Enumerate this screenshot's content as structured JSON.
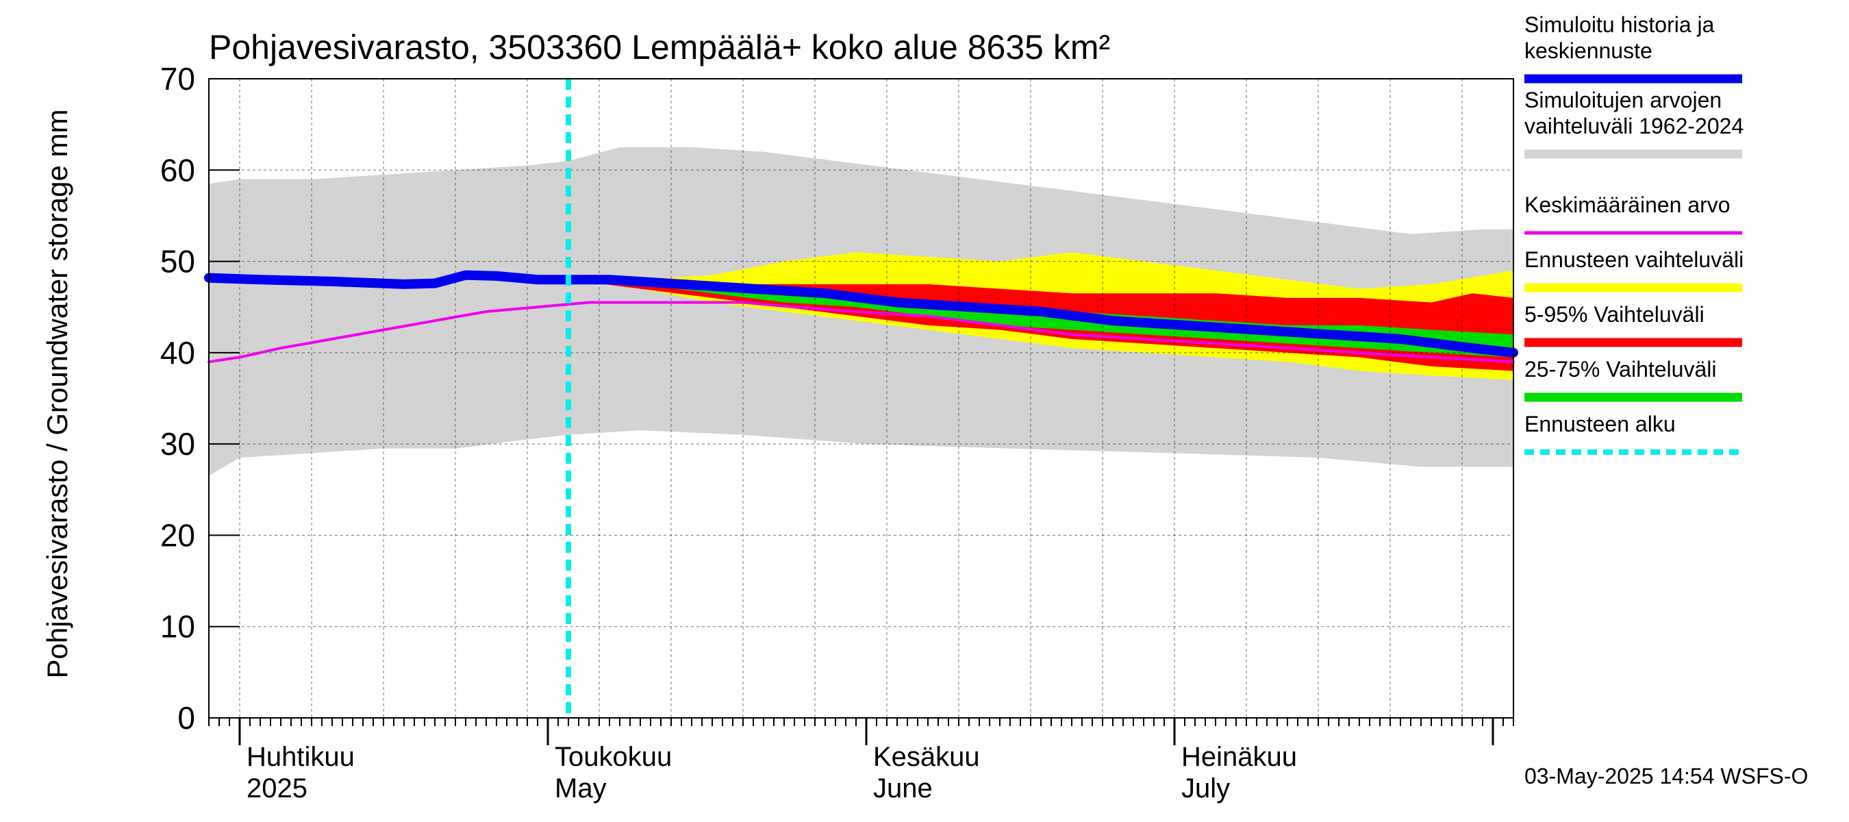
{
  "chart_data": {
    "type": "area",
    "title": "Pohjavesivarasto, 3503360 Lempäälä+ koko alue 8635 km²",
    "ylabel": "Pohjavesivarasto / Groundwater storage   mm",
    "ylim": [
      0,
      70
    ],
    "yticks": [
      "0",
      "10",
      "20",
      "30",
      "40",
      "50",
      "60",
      "70"
    ],
    "xlim": [
      "2025-03-29",
      "2025-08-03"
    ],
    "forecast_start": "2025-05-03",
    "month_labels": [
      {
        "date": "2025-04-01",
        "fi": "Huhtikuu",
        "en": "2025"
      },
      {
        "date": "2025-05-01",
        "fi": "Toukokuu",
        "en": "May"
      },
      {
        "date": "2025-06-01",
        "fi": "Kesäkuu",
        "en": "June"
      },
      {
        "date": "2025-07-01",
        "fi": "Heinäkuu",
        "en": "July"
      }
    ],
    "timestamp": "03-May-2025 14:54 WSFS-O",
    "legend": [
      {
        "key": "history",
        "label": "Simuloitu historia ja keskiennuste",
        "lines": [
          "Simuloitu historia ja",
          "keskiennuste"
        ],
        "color": "#0000ee",
        "style": "line"
      },
      {
        "key": "range",
        "label": "Simuloitujen arvojen vaihteluväli 1962-2024",
        "lines": [
          "Simuloitujen arvojen",
          "vaihteluväli 1962-2024"
        ],
        "color": "#d3d3d3",
        "style": "line"
      },
      {
        "key": "mean",
        "label": "Keskimääräinen arvo",
        "lines": [
          "Keskimääräinen arvo"
        ],
        "color": "#ee00ee",
        "style": "thin"
      },
      {
        "key": "fc_range",
        "label": "Ennusteen vaihteluväli",
        "lines": [
          "Ennusteen vaihteluväli"
        ],
        "color": "#ffff00",
        "style": "line"
      },
      {
        "key": "p5_95",
        "label": "5-95% Vaihteluväli",
        "lines": [
          "5-95% Vaihteluväli"
        ],
        "color": "#ff0000",
        "style": "line"
      },
      {
        "key": "p25_75",
        "label": "25-75% Vaihteluväli",
        "lines": [
          "25-75% Vaihteluväli"
        ],
        "color": "#00dd00",
        "style": "line"
      },
      {
        "key": "fc_start",
        "label": "Ennusteen alku",
        "lines": [
          "Ennusteen alku"
        ],
        "color": "#00eeee",
        "style": "dashed"
      }
    ],
    "series": {
      "range_upper": [
        [
          "2025-03-29",
          58.5
        ],
        [
          "2025-04-01",
          59
        ],
        [
          "2025-04-08",
          59
        ],
        [
          "2025-04-15",
          59.5
        ],
        [
          "2025-04-22",
          60
        ],
        [
          "2025-04-29",
          60.5
        ],
        [
          "2025-05-03",
          61
        ],
        [
          "2025-05-08",
          62.5
        ],
        [
          "2025-05-15",
          62.5
        ],
        [
          "2025-05-22",
          62
        ],
        [
          "2025-05-29",
          61
        ],
        [
          "2025-06-05",
          60
        ],
        [
          "2025-06-12",
          59
        ],
        [
          "2025-06-19",
          58
        ],
        [
          "2025-06-26",
          57
        ],
        [
          "2025-07-03",
          56
        ],
        [
          "2025-07-10",
          55
        ],
        [
          "2025-07-17",
          54
        ],
        [
          "2025-07-24",
          53
        ],
        [
          "2025-07-31",
          53.5
        ],
        [
          "2025-08-03",
          53.5
        ]
      ],
      "range_lower": [
        [
          "2025-03-29",
          26.5
        ],
        [
          "2025-04-01",
          28.5
        ],
        [
          "2025-04-08",
          29
        ],
        [
          "2025-04-15",
          29.5
        ],
        [
          "2025-04-22",
          29.5
        ],
        [
          "2025-04-29",
          30.5
        ],
        [
          "2025-05-03",
          31
        ],
        [
          "2025-05-10",
          31.5
        ],
        [
          "2025-05-20",
          31
        ],
        [
          "2025-06-01",
          30
        ],
        [
          "2025-06-15",
          29.5
        ],
        [
          "2025-07-01",
          29
        ],
        [
          "2025-07-15",
          28.5
        ],
        [
          "2025-07-25",
          27.5
        ],
        [
          "2025-08-03",
          27.5
        ]
      ],
      "fc_upper": [
        [
          "2025-05-03",
          48
        ],
        [
          "2025-05-10",
          48
        ],
        [
          "2025-05-17",
          48.5
        ],
        [
          "2025-05-24",
          50
        ],
        [
          "2025-05-31",
          51
        ],
        [
          "2025-06-07",
          50.5
        ],
        [
          "2025-06-14",
          50
        ],
        [
          "2025-06-21",
          51
        ],
        [
          "2025-06-28",
          50
        ],
        [
          "2025-07-05",
          49
        ],
        [
          "2025-07-12",
          48
        ],
        [
          "2025-07-19",
          47
        ],
        [
          "2025-07-26",
          47.5
        ],
        [
          "2025-08-03",
          49
        ]
      ],
      "fc_lower": [
        [
          "2025-05-03",
          48
        ],
        [
          "2025-05-10",
          47
        ],
        [
          "2025-05-17",
          45.5
        ],
        [
          "2025-05-24",
          44.5
        ],
        [
          "2025-05-31",
          43.5
        ],
        [
          "2025-06-07",
          42.5
        ],
        [
          "2025-06-14",
          41.5
        ],
        [
          "2025-06-21",
          40.5
        ],
        [
          "2025-06-28",
          40
        ],
        [
          "2025-07-05",
          39.5
        ],
        [
          "2025-07-12",
          39
        ],
        [
          "2025-07-19",
          38
        ],
        [
          "2025-07-26",
          37.5
        ],
        [
          "2025-08-03",
          37
        ]
      ],
      "p95": [
        [
          "2025-05-03",
          48
        ],
        [
          "2025-05-10",
          48
        ],
        [
          "2025-05-17",
          47.5
        ],
        [
          "2025-05-24",
          47.5
        ],
        [
          "2025-05-31",
          47.5
        ],
        [
          "2025-06-07",
          47.5
        ],
        [
          "2025-06-14",
          47
        ],
        [
          "2025-06-21",
          46.5
        ],
        [
          "2025-06-28",
          46.5
        ],
        [
          "2025-07-05",
          46.5
        ],
        [
          "2025-07-12",
          46
        ],
        [
          "2025-07-19",
          46
        ],
        [
          "2025-07-26",
          45.5
        ],
        [
          "2025-07-30",
          46.5
        ],
        [
          "2025-08-03",
          46
        ]
      ],
      "p5": [
        [
          "2025-05-03",
          48
        ],
        [
          "2025-05-10",
          47
        ],
        [
          "2025-05-17",
          46
        ],
        [
          "2025-05-24",
          45
        ],
        [
          "2025-05-31",
          44
        ],
        [
          "2025-06-07",
          43
        ],
        [
          "2025-06-14",
          42.5
        ],
        [
          "2025-06-21",
          41.5
        ],
        [
          "2025-06-28",
          41
        ],
        [
          "2025-07-05",
          40.5
        ],
        [
          "2025-07-12",
          40
        ],
        [
          "2025-07-19",
          39.5
        ],
        [
          "2025-07-26",
          38.5
        ],
        [
          "2025-08-03",
          38
        ]
      ],
      "p75": [
        [
          "2025-05-03",
          48
        ],
        [
          "2025-05-10",
          47.5
        ],
        [
          "2025-05-17",
          47
        ],
        [
          "2025-05-24",
          46.5
        ],
        [
          "2025-05-31",
          46
        ],
        [
          "2025-06-07",
          45.5
        ],
        [
          "2025-06-14",
          45
        ],
        [
          "2025-06-21",
          44.5
        ],
        [
          "2025-06-28",
          44
        ],
        [
          "2025-07-05",
          43.5
        ],
        [
          "2025-07-12",
          43
        ],
        [
          "2025-07-19",
          43
        ],
        [
          "2025-07-26",
          42.5
        ],
        [
          "2025-08-03",
          42
        ]
      ],
      "p25": [
        [
          "2025-05-03",
          48
        ],
        [
          "2025-05-10",
          47.5
        ],
        [
          "2025-05-17",
          46.5
        ],
        [
          "2025-05-24",
          45.5
        ],
        [
          "2025-05-31",
          45
        ],
        [
          "2025-06-07",
          44
        ],
        [
          "2025-06-14",
          43
        ],
        [
          "2025-06-21",
          42.5
        ],
        [
          "2025-06-28",
          42
        ],
        [
          "2025-07-05",
          41.5
        ],
        [
          "2025-07-12",
          41
        ],
        [
          "2025-07-19",
          40.5
        ],
        [
          "2025-07-26",
          40
        ],
        [
          "2025-08-03",
          39.5
        ]
      ],
      "history": [
        [
          "2025-03-29",
          48.2
        ],
        [
          "2025-04-03",
          48
        ],
        [
          "2025-04-10",
          47.8
        ],
        [
          "2025-04-17",
          47.5
        ],
        [
          "2025-04-20",
          47.6
        ],
        [
          "2025-04-23",
          48.5
        ],
        [
          "2025-04-26",
          48.4
        ],
        [
          "2025-04-30",
          48
        ],
        [
          "2025-05-03",
          48
        ],
        [
          "2025-05-07",
          48
        ],
        [
          "2025-05-14",
          47.5
        ],
        [
          "2025-05-21",
          47
        ],
        [
          "2025-05-28",
          46.5
        ],
        [
          "2025-06-04",
          45.5
        ],
        [
          "2025-06-11",
          45
        ],
        [
          "2025-06-18",
          44.5
        ],
        [
          "2025-06-25",
          43.5
        ],
        [
          "2025-07-02",
          43
        ],
        [
          "2025-07-09",
          42.5
        ],
        [
          "2025-07-16",
          42
        ],
        [
          "2025-07-23",
          41.5
        ],
        [
          "2025-07-30",
          40.5
        ],
        [
          "2025-08-03",
          40
        ]
      ],
      "mean": [
        [
          "2025-03-29",
          39
        ],
        [
          "2025-04-01",
          39.5
        ],
        [
          "2025-04-05",
          40.5
        ],
        [
          "2025-04-10",
          41.5
        ],
        [
          "2025-04-15",
          42.5
        ],
        [
          "2025-04-20",
          43.5
        ],
        [
          "2025-04-25",
          44.5
        ],
        [
          "2025-04-30",
          45
        ],
        [
          "2025-05-05",
          45.5
        ],
        [
          "2025-05-10",
          45.5
        ],
        [
          "2025-05-15",
          45.5
        ],
        [
          "2025-05-20",
          45.5
        ],
        [
          "2025-05-25",
          45
        ],
        [
          "2025-05-31",
          44.5
        ],
        [
          "2025-06-07",
          44
        ],
        [
          "2025-06-14",
          43
        ],
        [
          "2025-06-21",
          42
        ],
        [
          "2025-06-28",
          41.5
        ],
        [
          "2025-07-05",
          41
        ],
        [
          "2025-07-12",
          40.5
        ],
        [
          "2025-07-19",
          40
        ],
        [
          "2025-07-26",
          39.5
        ],
        [
          "2025-08-03",
          39
        ]
      ]
    }
  }
}
